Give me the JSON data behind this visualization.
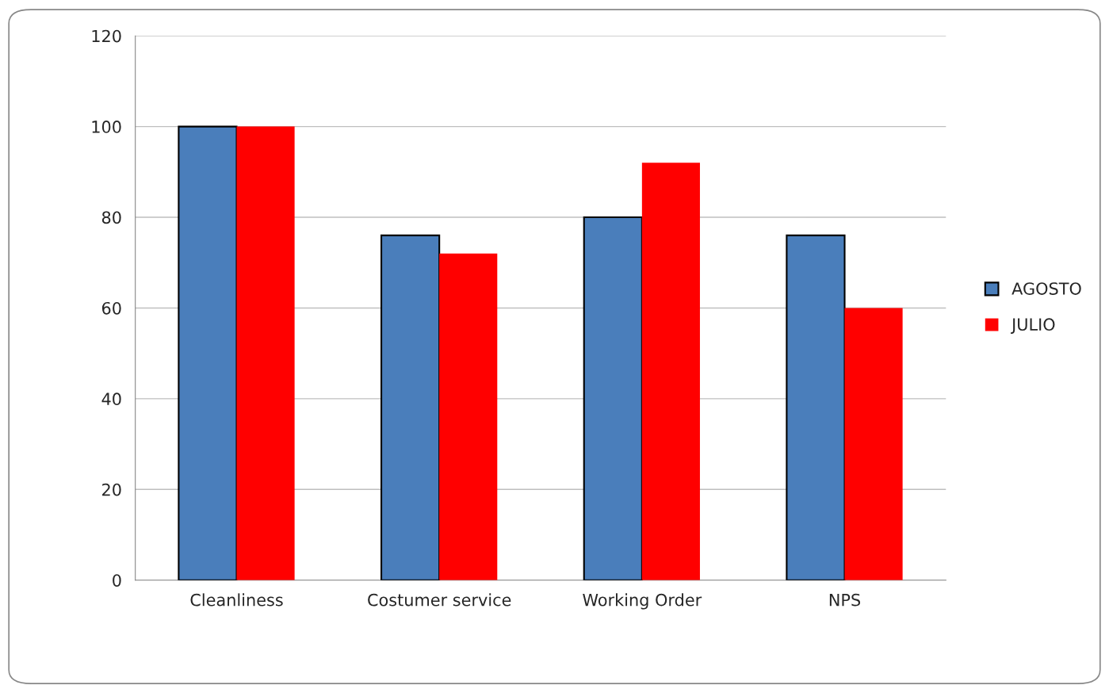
{
  "chart_data": {
    "type": "bar",
    "categories": [
      "Cleanliness",
      "Costumer service",
      "Working Order",
      "NPS"
    ],
    "series": [
      {
        "name": "AGOSTO",
        "color": "#4a7ebb",
        "values": [
          100,
          76,
          80,
          76
        ]
      },
      {
        "name": "JULIO",
        "color": "#ff0000",
        "values": [
          100,
          72,
          92,
          60
        ]
      }
    ],
    "ylim": [
      0,
      120
    ],
    "yticks": [
      0,
      20,
      40,
      60,
      80,
      100,
      120
    ],
    "grid": "y",
    "legend": "right"
  }
}
